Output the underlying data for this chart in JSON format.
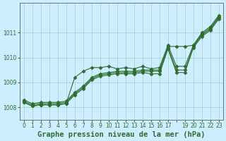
{
  "title": "Graphe pression niveau de la mer (hPa)",
  "background_color": "#cceeff",
  "plot_background": "#cceeff",
  "grid_color": "#aacccc",
  "line_color": "#2d6e2d",
  "xlim": [
    -0.5,
    23.5
  ],
  "ylim": [
    1007.5,
    1012.2
  ],
  "yticks": [
    1008,
    1009,
    1010,
    1011
  ],
  "xtick_labels": [
    "0",
    "1",
    "2",
    "3",
    "4",
    "5",
    "6",
    "7",
    "8",
    "9",
    "10",
    "11",
    "12",
    "13",
    "14",
    "15",
    "16",
    "17",
    "",
    "19",
    "20",
    "21",
    "22",
    "23"
  ],
  "series": [
    [
      1008.3,
      1008.15,
      1008.2,
      1008.2,
      1008.2,
      1008.25,
      1008.6,
      1008.85,
      1009.2,
      1009.35,
      1009.4,
      1009.45,
      1009.45,
      1009.45,
      1009.5,
      1009.5,
      1009.5,
      1010.45,
      1010.45,
      1010.45,
      1010.5,
      1011.0,
      1011.25,
      1011.7
    ],
    [
      1008.25,
      1008.1,
      1008.15,
      1008.15,
      1008.15,
      1008.2,
      1008.55,
      1008.8,
      1009.15,
      1009.3,
      1009.35,
      1009.4,
      1009.4,
      1009.4,
      1009.45,
      1009.45,
      1009.45,
      1010.4,
      1009.5,
      1009.5,
      1010.45,
      1010.9,
      1011.15,
      1011.6
    ],
    [
      1008.2,
      1008.05,
      1008.1,
      1008.1,
      1008.1,
      1008.15,
      1008.5,
      1008.75,
      1009.1,
      1009.25,
      1009.3,
      1009.35,
      1009.35,
      1009.35,
      1009.4,
      1009.35,
      1009.35,
      1010.35,
      1009.4,
      1009.4,
      1010.4,
      1010.85,
      1011.1,
      1011.55
    ],
    [
      1008.2,
      1008.05,
      1008.1,
      1008.1,
      1008.1,
      1008.15,
      1009.2,
      1009.45,
      1009.6,
      1009.6,
      1009.65,
      1009.55,
      1009.6,
      1009.55,
      1009.65,
      1009.55,
      1009.6,
      1010.5,
      1009.65,
      1009.65,
      1010.5,
      1010.95,
      1011.2,
      1011.65
    ]
  ],
  "marker": "D",
  "marker_size": 2.5,
  "line_width": 0.8,
  "font_color": "#2d6e2d",
  "title_fontsize": 7.5,
  "tick_fontsize": 5.5
}
